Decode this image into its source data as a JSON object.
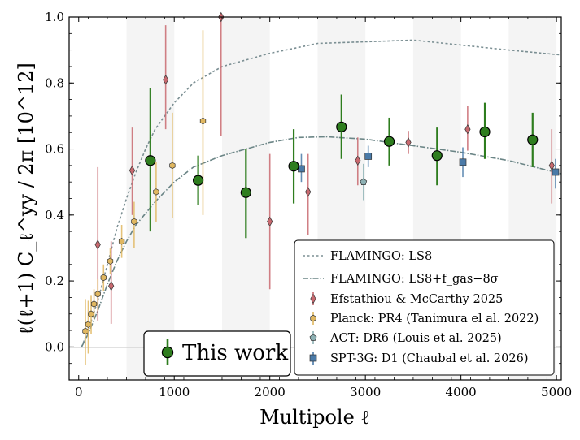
{
  "chart_data": {
    "type": "scatter",
    "xlabel": "Multipole ℓ",
    "ylabel": "ℓ(ℓ+1) C_ℓ^yy / 2π [10^12]",
    "xlim": [
      -100,
      5050
    ],
    "ylim": [
      -0.1,
      1.0
    ],
    "x_ticks": [
      0,
      1000,
      2000,
      3000,
      4000,
      5000
    ],
    "y_ticks": [
      0.0,
      0.2,
      0.4,
      0.6,
      0.8,
      1.0
    ],
    "x_tick_labels": [
      "0",
      "1000",
      "2000",
      "3000",
      "4000",
      "5000"
    ],
    "y_tick_labels": [
      "0.0",
      "0.2",
      "0.4",
      "0.6",
      "0.8",
      "1.0"
    ],
    "shaded_bands": [
      [
        500,
        1000
      ],
      [
        1500,
        2000
      ],
      [
        2500,
        3000
      ],
      [
        3500,
        4000
      ],
      [
        4500,
        5000
      ]
    ],
    "grid": false,
    "legend_position": "bottom-right",
    "models": [
      {
        "name": "FLAMINGO: LS8",
        "style": "dashed",
        "color": "#7b8f93",
        "points": [
          [
            30,
            0.0
          ],
          [
            100,
            0.05
          ],
          [
            200,
            0.14
          ],
          [
            300,
            0.25
          ],
          [
            400,
            0.36
          ],
          [
            500,
            0.45
          ],
          [
            600,
            0.53
          ],
          [
            700,
            0.6
          ],
          [
            800,
            0.66
          ],
          [
            1000,
            0.74
          ],
          [
            1200,
            0.8
          ],
          [
            1500,
            0.85
          ],
          [
            2000,
            0.89
          ],
          [
            2500,
            0.92
          ],
          [
            3000,
            0.925
          ],
          [
            3500,
            0.93
          ],
          [
            4000,
            0.915
          ],
          [
            4500,
            0.9
          ],
          [
            5050,
            0.885
          ]
        ]
      },
      {
        "name": "FLAMINGO: LS8+f_gas−8σ",
        "style": "dashdot",
        "color": "#6b8586",
        "points": [
          [
            30,
            0.0
          ],
          [
            100,
            0.04
          ],
          [
            200,
            0.11
          ],
          [
            300,
            0.19
          ],
          [
            400,
            0.26
          ],
          [
            500,
            0.32
          ],
          [
            600,
            0.37
          ],
          [
            800,
            0.44
          ],
          [
            1000,
            0.5
          ],
          [
            1200,
            0.545
          ],
          [
            1500,
            0.58
          ],
          [
            2000,
            0.62
          ],
          [
            2300,
            0.635
          ],
          [
            2600,
            0.637
          ],
          [
            3000,
            0.63
          ],
          [
            3500,
            0.61
          ],
          [
            4000,
            0.59
          ],
          [
            4500,
            0.565
          ],
          [
            5050,
            0.525
          ]
        ]
      }
    ],
    "series": [
      {
        "name": "Efstathiou & McCarthy 2025",
        "marker": "diamond",
        "color": "#c8696f",
        "points": [
          {
            "x": 200,
            "y": 0.31,
            "lo": 0.08,
            "hi": 0.545
          },
          {
            "x": 340,
            "y": 0.185,
            "lo": 0.07,
            "hi": 0.32
          },
          {
            "x": 560,
            "y": 0.535,
            "lo": 0.4,
            "hi": 0.665
          },
          {
            "x": 910,
            "y": 0.81,
            "lo": 0.66,
            "hi": 0.975
          },
          {
            "x": 1490,
            "y": 1.0,
            "lo": 0.64,
            "hi": 1.02
          },
          {
            "x": 2000,
            "y": 0.38,
            "lo": 0.175,
            "hi": 0.585
          },
          {
            "x": 2400,
            "y": 0.47,
            "lo": 0.34,
            "hi": 0.585
          },
          {
            "x": 2920,
            "y": 0.565,
            "lo": 0.49,
            "hi": 0.635
          },
          {
            "x": 3450,
            "y": 0.62,
            "lo": 0.585,
            "hi": 0.655
          },
          {
            "x": 4070,
            "y": 0.66,
            "lo": 0.595,
            "hi": 0.73
          },
          {
            "x": 4950,
            "y": 0.55,
            "lo": 0.435,
            "hi": 0.66
          }
        ]
      },
      {
        "name": "Planck: PR4 (Tanimura el al. 2022)",
        "marker": "hexagon",
        "color": "#e0b760",
        "points": [
          {
            "x": 70,
            "y": 0.048,
            "lo": -0.055,
            "hi": 0.145
          },
          {
            "x": 100,
            "y": 0.068,
            "lo": -0.02,
            "hi": 0.14
          },
          {
            "x": 130,
            "y": 0.1,
            "lo": 0.04,
            "hi": 0.155
          },
          {
            "x": 160,
            "y": 0.13,
            "lo": 0.085,
            "hi": 0.175
          },
          {
            "x": 200,
            "y": 0.16,
            "lo": 0.11,
            "hi": 0.205
          },
          {
            "x": 260,
            "y": 0.21,
            "lo": 0.17,
            "hi": 0.25
          },
          {
            "x": 330,
            "y": 0.26,
            "lo": 0.22,
            "hi": 0.3
          },
          {
            "x": 450,
            "y": 0.32,
            "lo": 0.27,
            "hi": 0.37
          },
          {
            "x": 580,
            "y": 0.38,
            "lo": 0.3,
            "hi": 0.44
          },
          {
            "x": 810,
            "y": 0.47,
            "lo": 0.38,
            "hi": 0.56
          },
          {
            "x": 980,
            "y": 0.55,
            "lo": 0.39,
            "hi": 0.71
          },
          {
            "x": 1300,
            "y": 0.685,
            "lo": 0.4,
            "hi": 0.96
          }
        ]
      },
      {
        "name": "ACT: DR6 (Louis et al. 2025)",
        "marker": "pentagon",
        "color": "#8db1b4",
        "points": [
          {
            "x": 2980,
            "y": 0.5,
            "lo": 0.445,
            "hi": 0.555
          }
        ]
      },
      {
        "name": "SPT-3G: D1 (Chaubal et al. 2026)",
        "marker": "square",
        "color": "#4a7aa8",
        "points": [
          {
            "x": 2330,
            "y": 0.54,
            "lo": 0.5,
            "hi": 0.585
          },
          {
            "x": 3030,
            "y": 0.578,
            "lo": 0.545,
            "hi": 0.61
          },
          {
            "x": 4020,
            "y": 0.56,
            "lo": 0.515,
            "hi": 0.605
          },
          {
            "x": 4990,
            "y": 0.53,
            "lo": 0.48,
            "hi": 0.57
          }
        ]
      },
      {
        "name": "This work",
        "marker": "circle",
        "color": "#2e7d1e",
        "points": [
          {
            "x": 750,
            "y": 0.565,
            "lo": 0.35,
            "hi": 0.785
          },
          {
            "x": 1250,
            "y": 0.505,
            "lo": 0.43,
            "hi": 0.58
          },
          {
            "x": 1750,
            "y": 0.468,
            "lo": 0.33,
            "hi": 0.6
          },
          {
            "x": 2250,
            "y": 0.548,
            "lo": 0.435,
            "hi": 0.66
          },
          {
            "x": 2750,
            "y": 0.667,
            "lo": 0.57,
            "hi": 0.765
          },
          {
            "x": 3250,
            "y": 0.623,
            "lo": 0.55,
            "hi": 0.695
          },
          {
            "x": 3750,
            "y": 0.58,
            "lo": 0.49,
            "hi": 0.665
          },
          {
            "x": 4250,
            "y": 0.652,
            "lo": 0.57,
            "hi": 0.74
          },
          {
            "x": 4750,
            "y": 0.628,
            "lo": 0.545,
            "hi": 0.71
          }
        ]
      }
    ]
  }
}
